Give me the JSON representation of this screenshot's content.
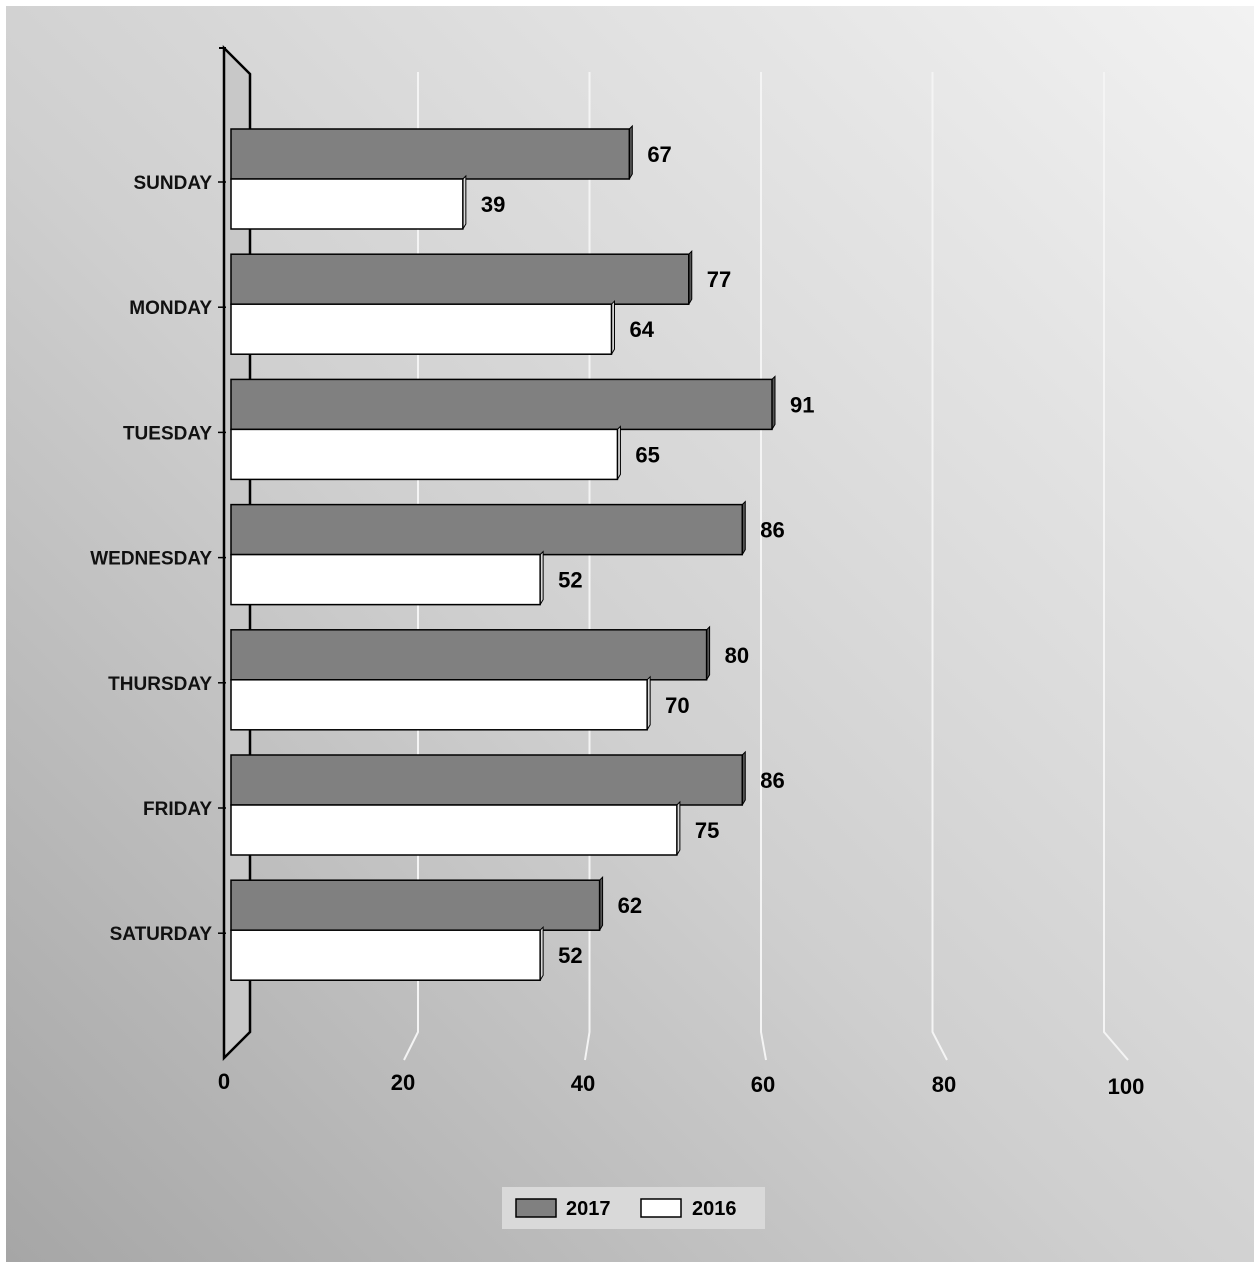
{
  "chart_data": {
    "type": "bar",
    "orientation": "horizontal",
    "three_d": true,
    "categories": [
      "SUNDAY",
      "MONDAY",
      "TUESDAY",
      "WEDNESDAY",
      "THURSDAY",
      "FRIDAY",
      "SATURDAY"
    ],
    "series": [
      {
        "name": "2017",
        "values": [
          67,
          77,
          91,
          86,
          80,
          86,
          62
        ],
        "color": "#808080"
      },
      {
        "name": "2016",
        "values": [
          39,
          64,
          65,
          52,
          70,
          75,
          52
        ],
        "color": "#ffffff"
      }
    ],
    "xlim": [
      0,
      100
    ],
    "x_ticks": [
      "0",
      "20",
      "40",
      "60",
      "80",
      "100"
    ],
    "grid": true,
    "legend_position": "bottom",
    "title": "",
    "xlabel": "",
    "ylabel": ""
  }
}
